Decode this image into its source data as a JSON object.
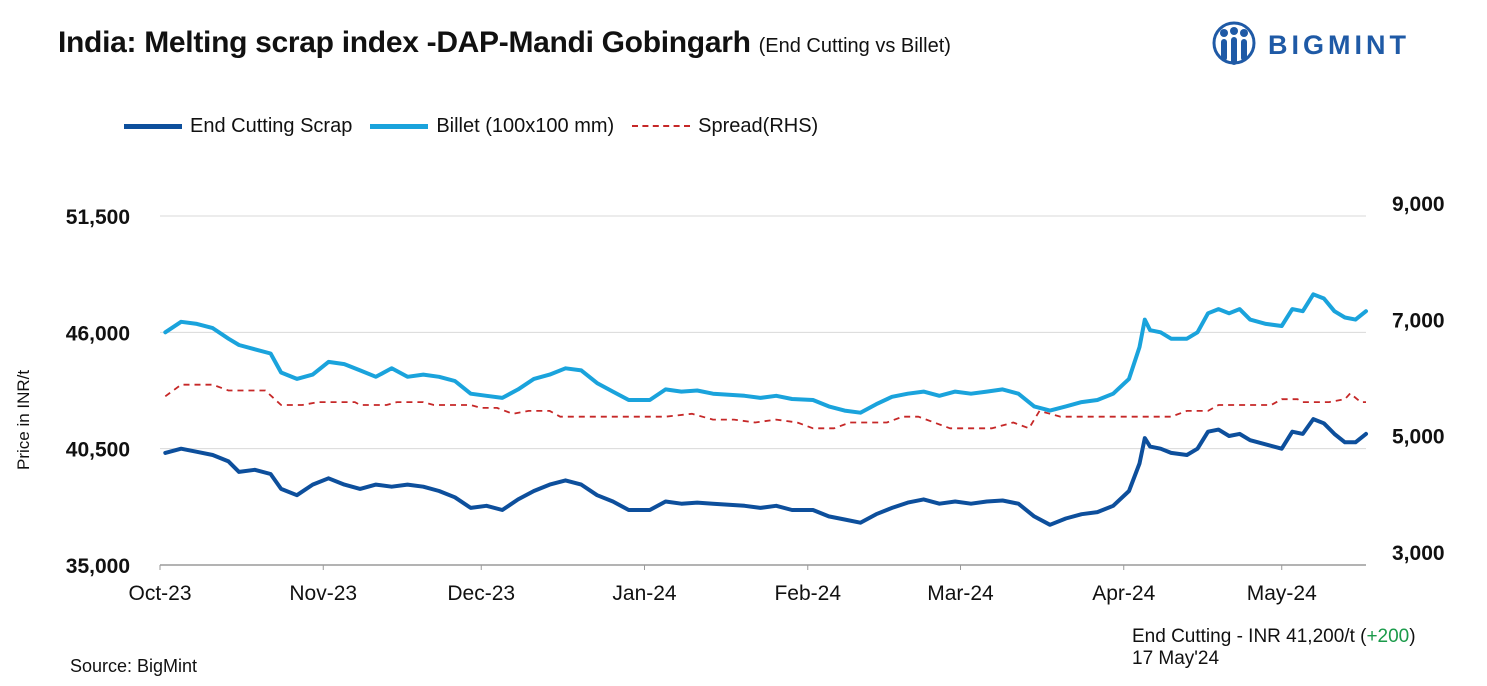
{
  "header": {
    "title": "India: Melting scrap index -DAP-Mandi Gobingarh",
    "subtitle": "(End Cutting vs Billet)"
  },
  "logo": {
    "text": "BIGMINT",
    "color": "#1f5aa6"
  },
  "legend": {
    "items": [
      {
        "label": "End Cutting Scrap",
        "color": "#0d4f9c",
        "style": "solid"
      },
      {
        "label": "Billet (100x100 mm)",
        "color": "#1aa3dc",
        "style": "solid"
      },
      {
        "label": "Spread(RHS)",
        "color": "#c62828",
        "style": "dashed"
      }
    ]
  },
  "footer": {
    "source": "Source: BigMint",
    "note_prefix": "End Cutting - INR 41,200/t (",
    "note_change": "+200",
    "note_suffix": ")",
    "note_date": "17 May'24"
  },
  "chart_data": {
    "type": "line",
    "xlabel": "",
    "ylabel": "Price in INR/t",
    "y_left": {
      "min": 35000,
      "max": 51500,
      "ticks": [
        35000,
        40500,
        46000,
        51500
      ]
    },
    "y_right": {
      "min": 3000,
      "max": 9000,
      "ticks": [
        3000,
        5000,
        7000,
        9000
      ]
    },
    "x_range": [
      "2023-10-01",
      "2024-05-17"
    ],
    "x_ticks": [
      {
        "label": "Oct-23",
        "date": "2023-10-01"
      },
      {
        "label": "Nov-23",
        "date": "2023-11-01"
      },
      {
        "label": "Dec-23",
        "date": "2023-12-01"
      },
      {
        "label": "Jan-24",
        "date": "2024-01-01"
      },
      {
        "label": "Feb-24",
        "date": "2024-02-01"
      },
      {
        "label": "Mar-24",
        "date": "2024-03-01"
      },
      {
        "label": "Apr-24",
        "date": "2024-04-01"
      },
      {
        "label": "May-24",
        "date": "2024-05-01"
      }
    ],
    "grid": "horizontal",
    "series": [
      {
        "name": "End Cutting Scrap",
        "axis": "left",
        "points": [
          [
            "2023-10-02",
            40300
          ],
          [
            "2023-10-05",
            40500
          ],
          [
            "2023-10-08",
            40350
          ],
          [
            "2023-10-11",
            40200
          ],
          [
            "2023-10-14",
            39900
          ],
          [
            "2023-10-16",
            39400
          ],
          [
            "2023-10-19",
            39500
          ],
          [
            "2023-10-22",
            39300
          ],
          [
            "2023-10-24",
            38600
          ],
          [
            "2023-10-27",
            38300
          ],
          [
            "2023-10-30",
            38800
          ],
          [
            "2023-11-02",
            39100
          ],
          [
            "2023-11-05",
            38800
          ],
          [
            "2023-11-08",
            38600
          ],
          [
            "2023-11-11",
            38800
          ],
          [
            "2023-11-14",
            38700
          ],
          [
            "2023-11-17",
            38800
          ],
          [
            "2023-11-20",
            38700
          ],
          [
            "2023-11-23",
            38500
          ],
          [
            "2023-11-26",
            38200
          ],
          [
            "2023-11-29",
            37700
          ],
          [
            "2023-12-02",
            37800
          ],
          [
            "2023-12-05",
            37600
          ],
          [
            "2023-12-08",
            38100
          ],
          [
            "2023-12-11",
            38500
          ],
          [
            "2023-12-14",
            38800
          ],
          [
            "2023-12-17",
            39000
          ],
          [
            "2023-12-20",
            38800
          ],
          [
            "2023-12-23",
            38300
          ],
          [
            "2023-12-26",
            38000
          ],
          [
            "2023-12-29",
            37600
          ],
          [
            "2024-01-02",
            37600
          ],
          [
            "2024-01-05",
            38000
          ],
          [
            "2024-01-08",
            37900
          ],
          [
            "2024-01-11",
            37950
          ],
          [
            "2024-01-14",
            37900
          ],
          [
            "2024-01-17",
            37850
          ],
          [
            "2024-01-20",
            37800
          ],
          [
            "2024-01-23",
            37700
          ],
          [
            "2024-01-26",
            37800
          ],
          [
            "2024-01-29",
            37600
          ],
          [
            "2024-02-02",
            37600
          ],
          [
            "2024-02-05",
            37300
          ],
          [
            "2024-02-08",
            37150
          ],
          [
            "2024-02-11",
            37000
          ],
          [
            "2024-02-14",
            37400
          ],
          [
            "2024-02-17",
            37700
          ],
          [
            "2024-02-20",
            37950
          ],
          [
            "2024-02-23",
            38100
          ],
          [
            "2024-02-26",
            37900
          ],
          [
            "2024-02-29",
            38000
          ],
          [
            "2024-03-03",
            37900
          ],
          [
            "2024-03-06",
            38000
          ],
          [
            "2024-03-09",
            38050
          ],
          [
            "2024-03-12",
            37900
          ],
          [
            "2024-03-15",
            37300
          ],
          [
            "2024-03-18",
            36900
          ],
          [
            "2024-03-21",
            37200
          ],
          [
            "2024-03-24",
            37400
          ],
          [
            "2024-03-27",
            37500
          ],
          [
            "2024-03-30",
            37800
          ],
          [
            "2024-04-02",
            38500
          ],
          [
            "2024-04-04",
            39800
          ],
          [
            "2024-04-05",
            41000
          ],
          [
            "2024-04-06",
            40600
          ],
          [
            "2024-04-08",
            40500
          ],
          [
            "2024-04-10",
            40300
          ],
          [
            "2024-04-13",
            40200
          ],
          [
            "2024-04-15",
            40500
          ],
          [
            "2024-04-17",
            41300
          ],
          [
            "2024-04-19",
            41400
          ],
          [
            "2024-04-21",
            41100
          ],
          [
            "2024-04-23",
            41200
          ],
          [
            "2024-04-25",
            40900
          ],
          [
            "2024-04-28",
            40700
          ],
          [
            "2024-05-01",
            40500
          ],
          [
            "2024-05-03",
            41300
          ],
          [
            "2024-05-05",
            41200
          ],
          [
            "2024-05-07",
            41900
          ],
          [
            "2024-05-09",
            41700
          ],
          [
            "2024-05-11",
            41200
          ],
          [
            "2024-05-13",
            40800
          ],
          [
            "2024-05-15",
            40800
          ],
          [
            "2024-05-17",
            41200
          ]
        ]
      },
      {
        "name": "Billet (100x100 mm)",
        "axis": "left",
        "points": [
          [
            "2023-10-02",
            46000
          ],
          [
            "2023-10-05",
            46500
          ],
          [
            "2023-10-08",
            46400
          ],
          [
            "2023-10-11",
            46200
          ],
          [
            "2023-10-14",
            45700
          ],
          [
            "2023-10-16",
            45400
          ],
          [
            "2023-10-19",
            45200
          ],
          [
            "2023-10-22",
            45000
          ],
          [
            "2023-10-24",
            44100
          ],
          [
            "2023-10-27",
            43800
          ],
          [
            "2023-10-30",
            44000
          ],
          [
            "2023-11-02",
            44600
          ],
          [
            "2023-11-05",
            44500
          ],
          [
            "2023-11-08",
            44200
          ],
          [
            "2023-11-11",
            43900
          ],
          [
            "2023-11-14",
            44300
          ],
          [
            "2023-11-17",
            43900
          ],
          [
            "2023-11-20",
            44000
          ],
          [
            "2023-11-23",
            43900
          ],
          [
            "2023-11-26",
            43700
          ],
          [
            "2023-11-29",
            43100
          ],
          [
            "2023-12-02",
            43000
          ],
          [
            "2023-12-05",
            42900
          ],
          [
            "2023-12-08",
            43300
          ],
          [
            "2023-12-11",
            43800
          ],
          [
            "2023-12-14",
            44000
          ],
          [
            "2023-12-17",
            44300
          ],
          [
            "2023-12-20",
            44200
          ],
          [
            "2023-12-23",
            43600
          ],
          [
            "2023-12-26",
            43200
          ],
          [
            "2023-12-29",
            42800
          ],
          [
            "2024-01-02",
            42800
          ],
          [
            "2024-01-05",
            43300
          ],
          [
            "2024-01-08",
            43200
          ],
          [
            "2024-01-11",
            43250
          ],
          [
            "2024-01-14",
            43100
          ],
          [
            "2024-01-17",
            43050
          ],
          [
            "2024-01-20",
            43000
          ],
          [
            "2024-01-23",
            42900
          ],
          [
            "2024-01-26",
            43000
          ],
          [
            "2024-01-29",
            42850
          ],
          [
            "2024-02-02",
            42800
          ],
          [
            "2024-02-05",
            42500
          ],
          [
            "2024-02-08",
            42300
          ],
          [
            "2024-02-11",
            42200
          ],
          [
            "2024-02-14",
            42600
          ],
          [
            "2024-02-17",
            42950
          ],
          [
            "2024-02-20",
            43100
          ],
          [
            "2024-02-23",
            43200
          ],
          [
            "2024-02-26",
            43000
          ],
          [
            "2024-02-29",
            43200
          ],
          [
            "2024-03-03",
            43100
          ],
          [
            "2024-03-06",
            43200
          ],
          [
            "2024-03-09",
            43300
          ],
          [
            "2024-03-12",
            43100
          ],
          [
            "2024-03-15",
            42500
          ],
          [
            "2024-03-18",
            42300
          ],
          [
            "2024-03-21",
            42500
          ],
          [
            "2024-03-24",
            42700
          ],
          [
            "2024-03-27",
            42800
          ],
          [
            "2024-03-30",
            43100
          ],
          [
            "2024-04-02",
            43800
          ],
          [
            "2024-04-04",
            45300
          ],
          [
            "2024-04-05",
            46600
          ],
          [
            "2024-04-06",
            46100
          ],
          [
            "2024-04-08",
            46000
          ],
          [
            "2024-04-10",
            45700
          ],
          [
            "2024-04-13",
            45700
          ],
          [
            "2024-04-15",
            46000
          ],
          [
            "2024-04-17",
            46900
          ],
          [
            "2024-04-19",
            47100
          ],
          [
            "2024-04-21",
            46900
          ],
          [
            "2024-04-23",
            47100
          ],
          [
            "2024-04-25",
            46600
          ],
          [
            "2024-04-28",
            46400
          ],
          [
            "2024-05-01",
            46300
          ],
          [
            "2024-05-03",
            47100
          ],
          [
            "2024-05-05",
            47000
          ],
          [
            "2024-05-07",
            47800
          ],
          [
            "2024-05-09",
            47600
          ],
          [
            "2024-05-11",
            47000
          ],
          [
            "2024-05-13",
            46700
          ],
          [
            "2024-05-15",
            46600
          ],
          [
            "2024-05-17",
            47000
          ]
        ]
      },
      {
        "name": "Spread(RHS)",
        "axis": "right",
        "points": [
          [
            "2023-10-02",
            5900
          ],
          [
            "2023-10-05",
            6100
          ],
          [
            "2023-10-11",
            6100
          ],
          [
            "2023-10-14",
            6000
          ],
          [
            "2023-10-21",
            6000
          ],
          [
            "2023-10-24",
            5750
          ],
          [
            "2023-10-28",
            5750
          ],
          [
            "2023-10-31",
            5800
          ],
          [
            "2023-11-07",
            5800
          ],
          [
            "2023-11-08",
            5750
          ],
          [
            "2023-11-13",
            5750
          ],
          [
            "2023-11-15",
            5800
          ],
          [
            "2023-11-20",
            5800
          ],
          [
            "2023-11-22",
            5750
          ],
          [
            "2023-11-29",
            5750
          ],
          [
            "2023-12-01",
            5700
          ],
          [
            "2023-12-04",
            5700
          ],
          [
            "2023-12-07",
            5600
          ],
          [
            "2023-12-10",
            5650
          ],
          [
            "2023-12-14",
            5650
          ],
          [
            "2023-12-16",
            5550
          ],
          [
            "2023-12-27",
            5550
          ],
          [
            "2024-01-01",
            5550
          ],
          [
            "2024-01-05",
            5550
          ],
          [
            "2024-01-10",
            5600
          ],
          [
            "2024-01-14",
            5500
          ],
          [
            "2024-01-18",
            5500
          ],
          [
            "2024-01-22",
            5450
          ],
          [
            "2024-01-26",
            5500
          ],
          [
            "2024-01-30",
            5450
          ],
          [
            "2024-02-02",
            5350
          ],
          [
            "2024-02-06",
            5350
          ],
          [
            "2024-02-09",
            5450
          ],
          [
            "2024-02-16",
            5450
          ],
          [
            "2024-02-19",
            5550
          ],
          [
            "2024-02-22",
            5550
          ],
          [
            "2024-02-25",
            5450
          ],
          [
            "2024-02-28",
            5350
          ],
          [
            "2024-03-03",
            5350
          ],
          [
            "2024-03-07",
            5350
          ],
          [
            "2024-03-11",
            5450
          ],
          [
            "2024-03-14",
            5350
          ],
          [
            "2024-03-16",
            5650
          ],
          [
            "2024-03-20",
            5550
          ],
          [
            "2024-03-25",
            5550
          ],
          [
            "2024-04-03",
            5550
          ],
          [
            "2024-04-10",
            5550
          ],
          [
            "2024-04-13",
            5650
          ],
          [
            "2024-04-17",
            5650
          ],
          [
            "2024-04-19",
            5750
          ],
          [
            "2024-04-29",
            5750
          ],
          [
            "2024-05-01",
            5850
          ],
          [
            "2024-05-04",
            5850
          ],
          [
            "2024-05-05",
            5800
          ],
          [
            "2024-05-10",
            5800
          ],
          [
            "2024-05-13",
            5850
          ],
          [
            "2024-05-14",
            5950
          ],
          [
            "2024-05-16",
            5800
          ],
          [
            "2024-05-17",
            5800
          ]
        ]
      }
    ]
  }
}
